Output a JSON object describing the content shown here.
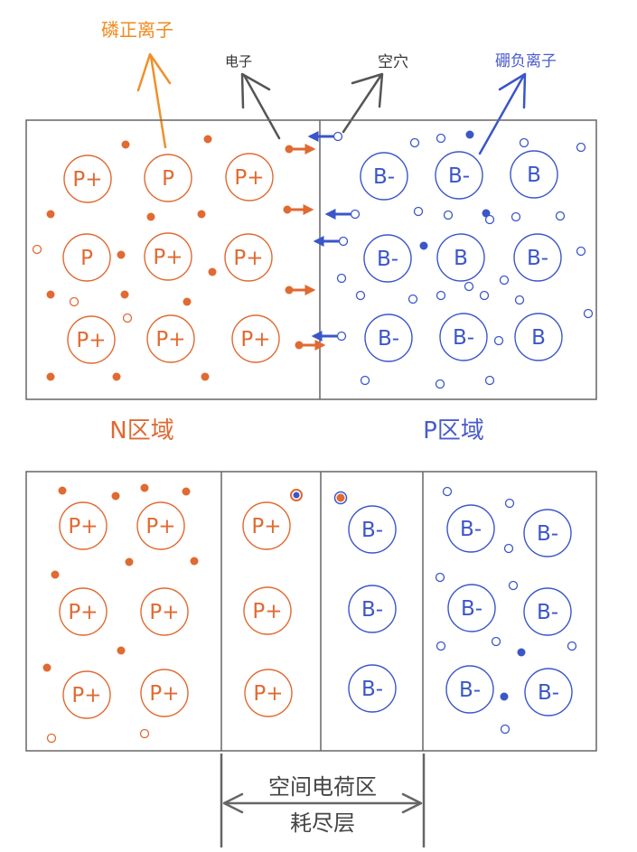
{
  "labels": {
    "phosphorus_ion": "磷正离子",
    "electron": "电子",
    "hole": "空穴",
    "boron_ion": "硼负离子",
    "n_region": "N区域",
    "p_region": "P区域",
    "space_charge_line1": "空间电荷区",
    "space_charge_line2": "耗尽层"
  },
  "ion_text": {
    "p_ion": "P+",
    "p_neutral": "P",
    "b_ion": "B-",
    "b_neutral": "B"
  },
  "colors": {
    "n_color": "#e06a32",
    "n_label_color": "#ef8a1e",
    "p_color": "#3b56c9",
    "p_label_color": "#4a5ccc",
    "border": "#666666",
    "arrow_gray": "#555555"
  },
  "top_n_atoms": [
    "P+",
    "P",
    "P+",
    "P",
    "P+",
    "P+",
    "P+",
    "P+",
    "P+"
  ],
  "top_p_atoms": [
    "B-",
    "B-",
    "B",
    "B-",
    "B",
    "B-",
    "B-",
    "B-",
    "B"
  ],
  "bottom_n_atoms": [
    "P+",
    "P+",
    "P+",
    "P+",
    "P+",
    "P+"
  ],
  "bottom_dep_n_atoms": [
    "P+",
    "P+",
    "P+"
  ],
  "bottom_dep_p_atoms": [
    "B-",
    "B-",
    "B-"
  ],
  "bottom_p_atoms": [
    "B-",
    "B-",
    "B-",
    "B-",
    "B-",
    "B-"
  ]
}
